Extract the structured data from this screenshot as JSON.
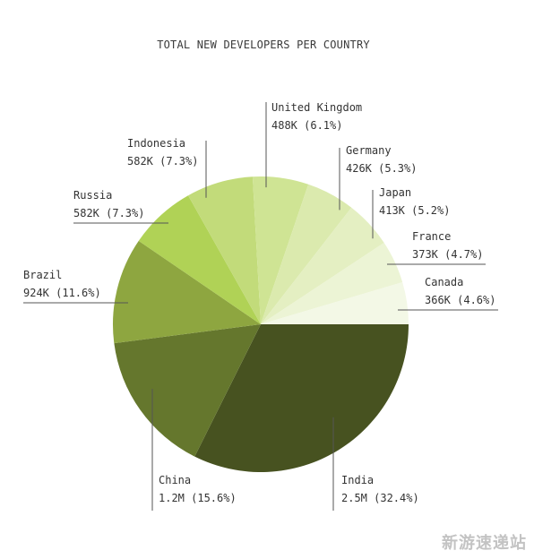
{
  "chart_data": {
    "type": "pie",
    "title": "TOTAL NEW DEVELOPERS PER COUNTRY",
    "slices": [
      {
        "name": "India",
        "value_text": "2.5M",
        "percent_text": "32.4%",
        "percent": 32.4,
        "color": "#475220"
      },
      {
        "name": "China",
        "value_text": "1.2M",
        "percent_text": "15.6%",
        "percent": 15.6,
        "color": "#65772d"
      },
      {
        "name": "Brazil",
        "value_text": "924K",
        "percent_text": "11.6%",
        "percent": 11.6,
        "color": "#8ea640"
      },
      {
        "name": "Russia",
        "value_text": "582K",
        "percent_text": "7.3%",
        "percent": 7.3,
        "color": "#b0d256"
      },
      {
        "name": "Indonesia",
        "value_text": "582K",
        "percent_text": "7.3%",
        "percent": 7.3,
        "color": "#c2db7a"
      },
      {
        "name": "United Kingdom",
        "value_text": "488K",
        "percent_text": "6.1%",
        "percent": 6.1,
        "color": "#cfe494"
      },
      {
        "name": "Germany",
        "value_text": "426K",
        "percent_text": "5.3%",
        "percent": 5.3,
        "color": "#dbeaae"
      },
      {
        "name": "Japan",
        "value_text": "413K",
        "percent_text": "5.2%",
        "percent": 5.2,
        "color": "#e4efc2"
      },
      {
        "name": "France",
        "value_text": "373K",
        "percent_text": "4.7%",
        "percent": 4.7,
        "color": "#ecf4d5"
      },
      {
        "name": "Canada",
        "value_text": "366K",
        "percent_text": "4.6%",
        "percent": 4.6,
        "color": "#f3f8e6"
      }
    ]
  },
  "watermark": "新游速递站"
}
